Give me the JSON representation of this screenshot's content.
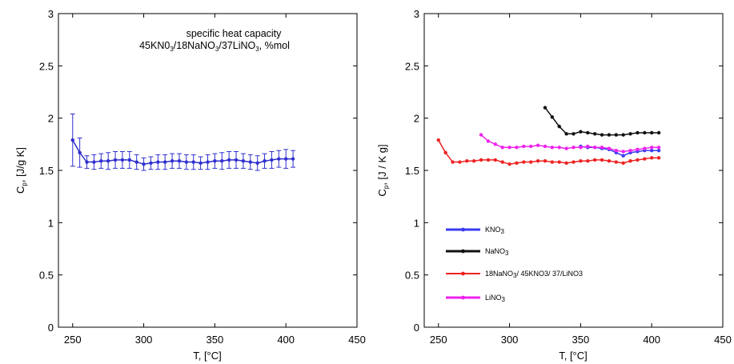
{
  "chart_data": [
    {
      "type": "line",
      "title_lines": [
        "specific heat capacity",
        "45KN0",
        "3",
        "/18NaNO",
        "3",
        "/37LiNO",
        "3",
        ", %mol"
      ],
      "xlabel": "T, [°C]",
      "ylabel_main": "C",
      "ylabel_sub": "p",
      "ylabel_rest": ", [J/g K]",
      "xlim": [
        240,
        450
      ],
      "ylim": [
        0,
        3
      ],
      "xticks": [
        250,
        300,
        350,
        400,
        450
      ],
      "yticks": [
        0,
        0.5,
        1,
        1.5,
        2,
        2.5,
        3
      ],
      "xtick_labels": [
        "250",
        "300",
        "350",
        "400",
        "450"
      ],
      "ytick_labels": [
        "0",
        "0.5",
        "1",
        "1.5",
        "2",
        "2.5",
        "3"
      ],
      "grid": false,
      "series": [
        {
          "color": "#2f2fd0",
          "x": [
            250,
            255,
            260,
            265,
            270,
            275,
            280,
            285,
            290,
            295,
            300,
            305,
            310,
            315,
            320,
            325,
            330,
            335,
            340,
            345,
            350,
            355,
            360,
            365,
            370,
            375,
            380,
            385,
            390,
            395,
            400,
            405
          ],
          "y": [
            1.79,
            1.67,
            1.58,
            1.58,
            1.59,
            1.59,
            1.6,
            1.6,
            1.6,
            1.58,
            1.56,
            1.57,
            1.58,
            1.58,
            1.59,
            1.59,
            1.58,
            1.58,
            1.57,
            1.58,
            1.59,
            1.59,
            1.6,
            1.6,
            1.59,
            1.58,
            1.57,
            1.59,
            1.6,
            1.61,
            1.61,
            1.61
          ],
          "err": [
            0.25,
            0.14,
            0.06,
            0.07,
            0.07,
            0.08,
            0.08,
            0.08,
            0.08,
            0.07,
            0.06,
            0.06,
            0.07,
            0.07,
            0.07,
            0.07,
            0.07,
            0.07,
            0.06,
            0.07,
            0.07,
            0.08,
            0.08,
            0.08,
            0.07,
            0.07,
            0.07,
            0.07,
            0.08,
            0.08,
            0.09,
            0.08
          ]
        }
      ]
    },
    {
      "type": "line",
      "xlabel": "T, [°C]",
      "ylabel_main": "C",
      "ylabel_sub": "p",
      "ylabel_rest": ", [J / K g]",
      "xlim": [
        240,
        450
      ],
      "ylim": [
        0,
        3
      ],
      "xticks": [
        250,
        300,
        350,
        400,
        450
      ],
      "yticks": [
        0,
        0.5,
        1,
        1.5,
        2,
        2.5,
        3
      ],
      "xtick_labels": [
        "250",
        "300",
        "350",
        "400",
        "450"
      ],
      "ytick_labels": [
        "0",
        "0.5",
        "1",
        "1.5",
        "2",
        "2.5",
        "3"
      ],
      "grid": false,
      "legend": "lower-left",
      "series": [
        {
          "name": "KNO",
          "name_sub": "3",
          "name_rest": "",
          "color": "#3b3bf0",
          "x": [
            350,
            355,
            360,
            365,
            370,
            375,
            380,
            385,
            390,
            395,
            400,
            405
          ],
          "y": [
            1.73,
            1.72,
            1.72,
            1.71,
            1.7,
            1.67,
            1.64,
            1.67,
            1.68,
            1.69,
            1.69,
            1.69
          ]
        },
        {
          "name": "NaNO",
          "name_sub": "3",
          "name_rest": "",
          "color": "#111111",
          "x": [
            325,
            330,
            335,
            340,
            345,
            350,
            355,
            360,
            365,
            370,
            375,
            380,
            385,
            390,
            395,
            400,
            405
          ],
          "y": [
            2.1,
            2.01,
            1.92,
            1.85,
            1.85,
            1.87,
            1.86,
            1.85,
            1.84,
            1.84,
            1.84,
            1.84,
            1.85,
            1.86,
            1.86,
            1.86,
            1.86
          ]
        },
        {
          "name": "18NaNO",
          "name_sub": "3",
          "name_rest": "/ 45KNO3/ 37/LiNO3",
          "color": "#ee2222",
          "x": [
            250,
            255,
            260,
            265,
            270,
            275,
            280,
            285,
            290,
            295,
            300,
            305,
            310,
            315,
            320,
            325,
            330,
            335,
            340,
            345,
            350,
            355,
            360,
            365,
            370,
            375,
            380,
            385,
            390,
            395,
            400,
            405
          ],
          "y": [
            1.79,
            1.67,
            1.58,
            1.58,
            1.59,
            1.59,
            1.6,
            1.6,
            1.6,
            1.58,
            1.56,
            1.57,
            1.58,
            1.58,
            1.59,
            1.59,
            1.58,
            1.58,
            1.57,
            1.58,
            1.59,
            1.59,
            1.6,
            1.6,
            1.59,
            1.58,
            1.57,
            1.59,
            1.6,
            1.61,
            1.62,
            1.62
          ]
        },
        {
          "name": "LiNO",
          "name_sub": "3",
          "name_rest": "",
          "color": "#ee22ee",
          "x": [
            280,
            285,
            290,
            295,
            300,
            305,
            310,
            315,
            320,
            325,
            330,
            335,
            340,
            345,
            350,
            355,
            360,
            365,
            370,
            375,
            380,
            385,
            390,
            395,
            400,
            405
          ],
          "y": [
            1.84,
            1.78,
            1.75,
            1.72,
            1.72,
            1.72,
            1.73,
            1.73,
            1.74,
            1.73,
            1.72,
            1.72,
            1.71,
            1.72,
            1.72,
            1.73,
            1.72,
            1.72,
            1.71,
            1.69,
            1.68,
            1.69,
            1.7,
            1.71,
            1.72,
            1.72
          ]
        }
      ]
    }
  ]
}
